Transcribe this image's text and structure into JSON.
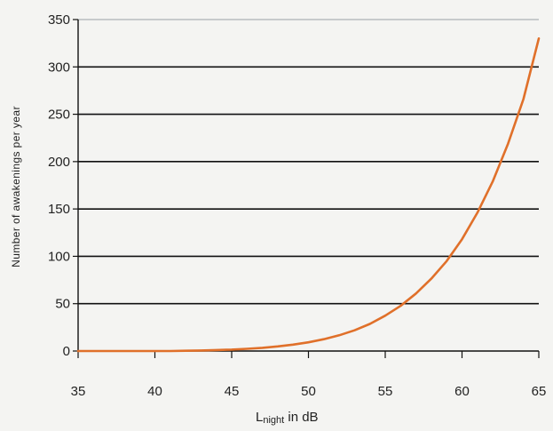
{
  "chart_data": {
    "type": "line",
    "xlabel_main": "L",
    "xlabel_sub": "night",
    "xlabel_rest": " in dB",
    "ylabel": "Number of awakenings per year",
    "xlim": [
      35,
      65
    ],
    "ylim": [
      0,
      350
    ],
    "xticks": [
      35,
      40,
      45,
      50,
      55,
      60,
      65
    ],
    "yticks": [
      0,
      50,
      100,
      150,
      200,
      250,
      300,
      350
    ],
    "grid": true,
    "series": [
      {
        "color": "#e0702a",
        "x": [
          35,
          36,
          37,
          38,
          39,
          40,
          41,
          42,
          43,
          44,
          45,
          46,
          47,
          48,
          49,
          50,
          51,
          52,
          53,
          54,
          55,
          56,
          57,
          58,
          59,
          60,
          61,
          62,
          63,
          64,
          65
        ],
        "y": [
          0,
          0,
          0,
          0,
          0,
          0,
          0,
          0.3,
          0.6,
          1,
          1.5,
          2.3,
          3.4,
          4.9,
          6.8,
          9.2,
          12.5,
          16.6,
          21.9,
          28.6,
          37.3,
          47.7,
          60.7,
          76.4,
          95,
          118,
          146,
          179,
          219,
          266,
          330
        ]
      }
    ]
  }
}
